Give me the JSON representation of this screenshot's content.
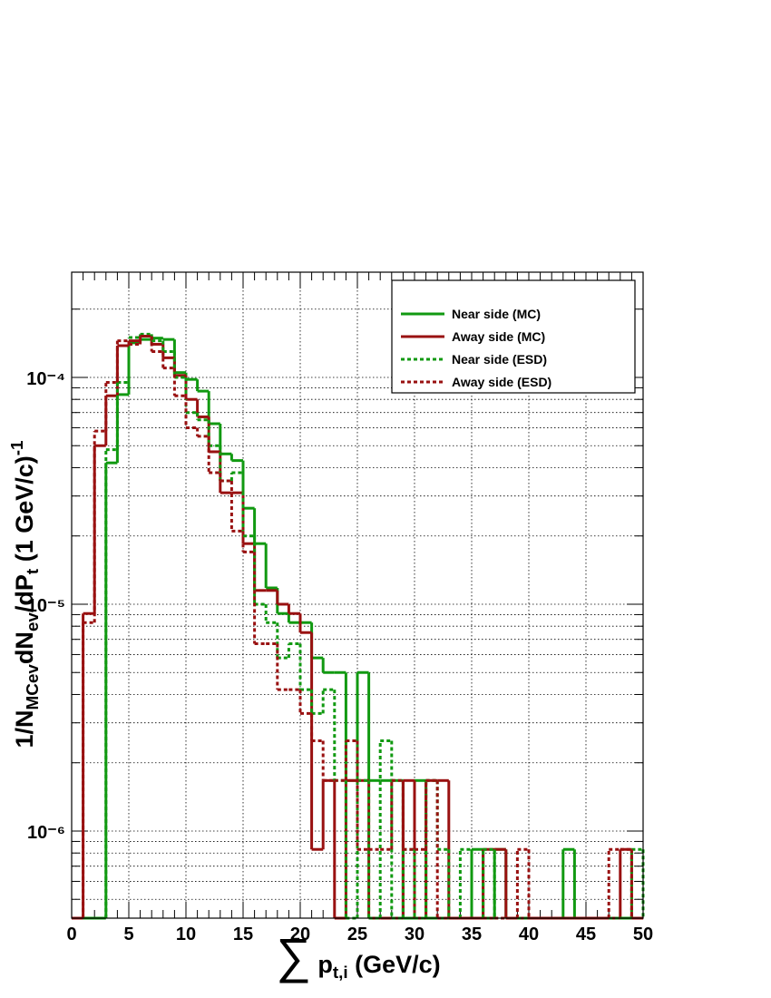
{
  "chart_data": {
    "type": "histogram",
    "log_y": true,
    "grid": true,
    "legend_position": "top-right",
    "ylabel_parts": [
      {
        "text": "1/N"
      },
      {
        "text": "MCev",
        "shift": "sub"
      },
      {
        "text": "dN"
      },
      {
        "text": "ev",
        "shift": "sub"
      },
      {
        "text": "/dP"
      },
      {
        "text": "t",
        "shift": "sub"
      },
      {
        "text": " (1 GeV/c)"
      },
      {
        "text": "-1",
        "shift": "super"
      }
    ],
    "xlabel_parts": [
      {
        "text": "∑",
        "shift": "big"
      },
      {
        "text": " p"
      },
      {
        "text": "t,i",
        "shift": "sub"
      },
      {
        "text": "  (GeV/c)"
      }
    ],
    "xlim": [
      0,
      50
    ],
    "xticks": [
      0,
      5,
      10,
      15,
      20,
      25,
      30,
      35,
      40,
      45,
      50
    ],
    "ylim": [
      4.13e-07,
      0.000291
    ],
    "yticks": [
      {
        "value": 1e-06,
        "label": "10⁻⁶"
      },
      {
        "value": 1e-05,
        "label": "10⁻⁵"
      },
      {
        "value": 0.0001,
        "label": "10⁻⁴"
      }
    ],
    "yminorticks": [
      5e-07,
      6e-07,
      7e-07,
      8e-07,
      9e-07,
      2e-06,
      3e-06,
      4e-06,
      5e-06,
      6e-06,
      7e-06,
      8e-06,
      9e-06,
      2e-05,
      3e-05,
      4e-05,
      5e-05,
      6e-05,
      7e-05,
      8e-05,
      9e-05,
      0.0002
    ],
    "bins": [
      0,
      1,
      2,
      3,
      4,
      5,
      6,
      7,
      8,
      9,
      10,
      11,
      12,
      13,
      14,
      15,
      16,
      17,
      18,
      19,
      20,
      21,
      22,
      23,
      24,
      25,
      26,
      27,
      28,
      29,
      30,
      31,
      32,
      33,
      34,
      35,
      36,
      37,
      38,
      39,
      40,
      41,
      42,
      43,
      44,
      45,
      46,
      47,
      48,
      49,
      50
    ],
    "series": [
      {
        "name": "Near side (MC)",
        "color": "#119911",
        "linestyle": "solid",
        "values": [
          0,
          0,
          0,
          4.2e-05,
          8.4e-05,
          0.000142,
          0.000147,
          0.000149,
          0.000147,
          0.000105,
          9.8e-05,
          8.7e-05,
          6.25e-05,
          4.6e-05,
          4.3e-05,
          2.65e-05,
          1.85e-05,
          1.18e-05,
          9.1e-06,
          8.3e-06,
          8.3e-06,
          5.8e-06,
          5e-06,
          5e-06,
          1.67e-06,
          5e-06,
          1.67e-06,
          1.67e-06,
          1.67e-06,
          0,
          1.67e-06,
          0,
          0,
          0,
          0,
          8.3e-07,
          0,
          8.3e-07,
          0,
          0,
          0,
          0,
          0,
          8.3e-07,
          0,
          0,
          0,
          0,
          0,
          0
        ]
      },
      {
        "name": "Away side (MC)",
        "color": "#991111",
        "linestyle": "solid",
        "values": [
          0,
          9.1e-06,
          5e-05,
          8.3e-05,
          0.000138,
          0.000145,
          0.000152,
          0.00014,
          0.000122,
          0.000102,
          8e-05,
          6.7e-05,
          4.7e-05,
          3.1e-05,
          3.1e-05,
          1.85e-05,
          1.15e-05,
          1.15e-05,
          1e-05,
          9.1e-06,
          7.5e-06,
          8.3e-07,
          1.67e-06,
          0,
          1.67e-06,
          1.67e-06,
          0,
          0,
          0,
          1.67e-06,
          0,
          1.67e-06,
          1.67e-06,
          0,
          0,
          0,
          8.3e-07,
          8.3e-07,
          0,
          0,
          0,
          0,
          0,
          0,
          0,
          0,
          0,
          0,
          8.3e-07,
          0
        ]
      },
      {
        "name": "Near side (ESD)",
        "color": "#119911",
        "linestyle": "dotted",
        "values": [
          0,
          0,
          0,
          4.8e-05,
          9.5e-05,
          0.00015,
          0.000155,
          0.000145,
          0.00013,
          0.0001,
          7e-05,
          6.5e-05,
          5e-05,
          3.5e-05,
          3.8e-05,
          2e-05,
          1e-05,
          8.3e-06,
          5.8e-06,
          6.7e-06,
          4.2e-06,
          3.3e-06,
          4.2e-06,
          1.67e-06,
          0,
          1.67e-06,
          0,
          2.5e-06,
          0,
          8.3e-07,
          0,
          1.67e-06,
          8.3e-07,
          0,
          8.3e-07,
          0,
          8.3e-07,
          0,
          0,
          0,
          0,
          0,
          0,
          0,
          0,
          0,
          0,
          0,
          0,
          8.3e-07
        ]
      },
      {
        "name": "Away side (ESD)",
        "color": "#991111",
        "linestyle": "dotted",
        "values": [
          0,
          8.3e-06,
          5.8e-05,
          9.5e-05,
          0.000145,
          0.00014,
          0.000152,
          0.00013,
          0.00011,
          8.3e-05,
          6e-05,
          5.5e-05,
          3.8e-05,
          3.5e-05,
          2.1e-05,
          1.7e-05,
          6.7e-06,
          6.7e-06,
          4.2e-06,
          4.2e-06,
          3.3e-06,
          2.5e-06,
          1.67e-06,
          1.67e-06,
          2.5e-06,
          8.3e-07,
          8.3e-07,
          8.3e-07,
          1.67e-06,
          8.3e-07,
          8.3e-07,
          1.67e-06,
          0,
          0,
          0,
          0,
          0,
          0,
          0,
          8.3e-07,
          0,
          0,
          0,
          0,
          0,
          0,
          0,
          8.3e-07,
          8.3e-07,
          0
        ]
      }
    ]
  }
}
